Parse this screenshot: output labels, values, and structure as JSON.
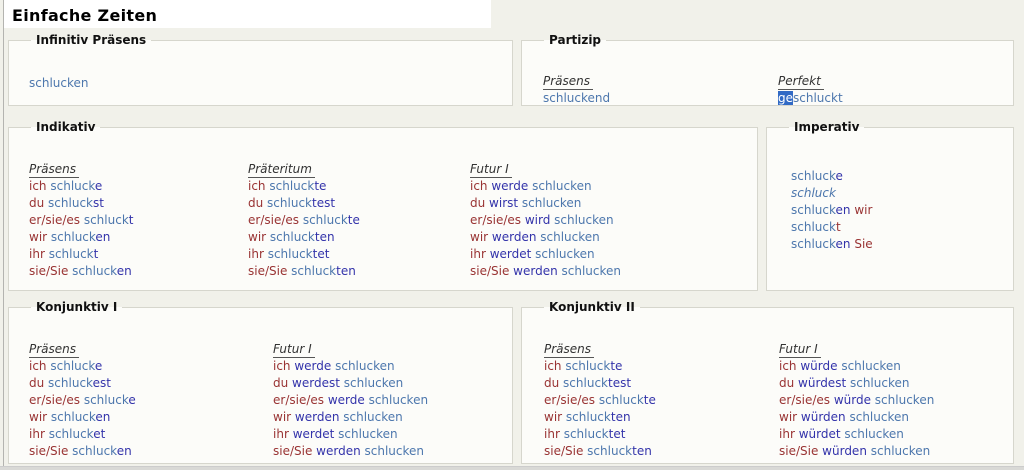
{
  "page": {
    "title": "Einfache Zeiten"
  },
  "colors": {
    "p": "#993333",
    "s": "#4d77ad",
    "e": "#3333aa",
    "sel_bg": "#316ac5",
    "sel_fg": "#ffffff"
  },
  "infinitiv": {
    "legend": "Infinitiv Präsens",
    "rows": [
      [
        [
          "schlucken",
          "s"
        ]
      ]
    ]
  },
  "partizip": {
    "legend": "Partizip",
    "praesens": {
      "header": "Präsens",
      "rows": [
        [
          [
            "schluckend",
            "s"
          ]
        ]
      ]
    },
    "perfekt": {
      "header": "Perfekt",
      "rows": [
        [
          [
            "ge",
            "sel"
          ],
          [
            "schluckt",
            "s"
          ]
        ]
      ]
    }
  },
  "indikativ": {
    "legend": "Indikativ",
    "praesens": {
      "header": "Präsens",
      "rows": [
        [
          [
            "ich ",
            "p"
          ],
          [
            "schluck",
            "s"
          ],
          [
            "e",
            "e"
          ]
        ],
        [
          [
            "du ",
            "p"
          ],
          [
            "schluck",
            "s"
          ],
          [
            "st",
            "e"
          ]
        ],
        [
          [
            "er/sie/es ",
            "p"
          ],
          [
            "schluck",
            "s"
          ],
          [
            "t",
            "e"
          ]
        ],
        [
          [
            "wir ",
            "p"
          ],
          [
            "schluck",
            "s"
          ],
          [
            "en",
            "e"
          ]
        ],
        [
          [
            "ihr ",
            "p"
          ],
          [
            "schluck",
            "s"
          ],
          [
            "t",
            "e"
          ]
        ],
        [
          [
            "sie/Sie ",
            "p"
          ],
          [
            "schluck",
            "s"
          ],
          [
            "en",
            "e"
          ]
        ]
      ]
    },
    "praeteritum": {
      "header": "Präteritum",
      "rows": [
        [
          [
            "ich ",
            "p"
          ],
          [
            "schluck",
            "s"
          ],
          [
            "te",
            "e"
          ]
        ],
        [
          [
            "du ",
            "p"
          ],
          [
            "schluck",
            "s"
          ],
          [
            "test",
            "e"
          ]
        ],
        [
          [
            "er/sie/es ",
            "p"
          ],
          [
            "schluck",
            "s"
          ],
          [
            "te",
            "e"
          ]
        ],
        [
          [
            "wir ",
            "p"
          ],
          [
            "schluck",
            "s"
          ],
          [
            "ten",
            "e"
          ]
        ],
        [
          [
            "ihr ",
            "p"
          ],
          [
            "schluck",
            "s"
          ],
          [
            "tet",
            "e"
          ]
        ],
        [
          [
            "sie/Sie ",
            "p"
          ],
          [
            "schluck",
            "s"
          ],
          [
            "ten",
            "e"
          ]
        ]
      ]
    },
    "futur1": {
      "header": "Futur I",
      "rows": [
        [
          [
            "ich ",
            "p"
          ],
          [
            "werde",
            "e"
          ],
          [
            " schlucken",
            "s"
          ]
        ],
        [
          [
            "du ",
            "p"
          ],
          [
            "wirst",
            "e"
          ],
          [
            " schlucken",
            "s"
          ]
        ],
        [
          [
            "er/sie/es ",
            "p"
          ],
          [
            "wird",
            "e"
          ],
          [
            " schlucken",
            "s"
          ]
        ],
        [
          [
            "wir ",
            "p"
          ],
          [
            "werden",
            "e"
          ],
          [
            " schlucken",
            "s"
          ]
        ],
        [
          [
            "ihr ",
            "p"
          ],
          [
            "werdet",
            "e"
          ],
          [
            " schlucken",
            "s"
          ]
        ],
        [
          [
            "sie/Sie ",
            "p"
          ],
          [
            "werden",
            "e"
          ],
          [
            " schlucken",
            "s"
          ]
        ]
      ]
    }
  },
  "imperativ": {
    "legend": "Imperativ",
    "rows": [
      [
        [
          "schluck",
          "s"
        ],
        [
          "e",
          "e"
        ]
      ],
      [
        [
          "schluck",
          "i"
        ]
      ],
      [
        [
          "schluck",
          "s"
        ],
        [
          "en",
          "e"
        ],
        [
          " wir",
          "p"
        ]
      ],
      [
        [
          "schluck",
          "s"
        ],
        [
          "t",
          "p"
        ]
      ],
      [
        [
          "schluck",
          "s"
        ],
        [
          "en",
          "e"
        ],
        [
          " Sie",
          "p"
        ]
      ]
    ]
  },
  "konjunktiv1": {
    "legend": "Konjunktiv I",
    "praesens": {
      "header": "Präsens",
      "rows": [
        [
          [
            "ich ",
            "p"
          ],
          [
            "schluck",
            "s"
          ],
          [
            "e",
            "e"
          ]
        ],
        [
          [
            "du ",
            "p"
          ],
          [
            "schluck",
            "s"
          ],
          [
            "est",
            "e"
          ]
        ],
        [
          [
            "er/sie/es ",
            "p"
          ],
          [
            "schluck",
            "s"
          ],
          [
            "e",
            "e"
          ]
        ],
        [
          [
            "wir ",
            "p"
          ],
          [
            "schluck",
            "s"
          ],
          [
            "en",
            "e"
          ]
        ],
        [
          [
            "ihr ",
            "p"
          ],
          [
            "schluck",
            "s"
          ],
          [
            "et",
            "e"
          ]
        ],
        [
          [
            "sie/Sie ",
            "p"
          ],
          [
            "schluck",
            "s"
          ],
          [
            "en",
            "e"
          ]
        ]
      ]
    },
    "futur1": {
      "header": "Futur I",
      "rows": [
        [
          [
            "ich ",
            "p"
          ],
          [
            "werde",
            "e"
          ],
          [
            " schlucken",
            "s"
          ]
        ],
        [
          [
            "du ",
            "p"
          ],
          [
            "werdest",
            "e"
          ],
          [
            " schlucken",
            "s"
          ]
        ],
        [
          [
            "er/sie/es ",
            "p"
          ],
          [
            "werde",
            "e"
          ],
          [
            " schlucken",
            "s"
          ]
        ],
        [
          [
            "wir ",
            "p"
          ],
          [
            "werden",
            "e"
          ],
          [
            " schlucken",
            "s"
          ]
        ],
        [
          [
            "ihr ",
            "p"
          ],
          [
            "werdet",
            "e"
          ],
          [
            " schlucken",
            "s"
          ]
        ],
        [
          [
            "sie/Sie ",
            "p"
          ],
          [
            "werden",
            "e"
          ],
          [
            " schlucken",
            "s"
          ]
        ]
      ]
    }
  },
  "konjunktiv2": {
    "legend": "Konjunktiv II",
    "praesens": {
      "header": "Präsens",
      "rows": [
        [
          [
            "ich ",
            "p"
          ],
          [
            "schluck",
            "s"
          ],
          [
            "te",
            "e"
          ]
        ],
        [
          [
            "du ",
            "p"
          ],
          [
            "schluck",
            "s"
          ],
          [
            "test",
            "e"
          ]
        ],
        [
          [
            "er/sie/es ",
            "p"
          ],
          [
            "schluck",
            "s"
          ],
          [
            "te",
            "e"
          ]
        ],
        [
          [
            "wir ",
            "p"
          ],
          [
            "schluck",
            "s"
          ],
          [
            "ten",
            "e"
          ]
        ],
        [
          [
            "ihr ",
            "p"
          ],
          [
            "schluck",
            "s"
          ],
          [
            "tet",
            "e"
          ]
        ],
        [
          [
            "sie/Sie ",
            "p"
          ],
          [
            "schluck",
            "s"
          ],
          [
            "ten",
            "e"
          ]
        ]
      ]
    },
    "futur1": {
      "header": "Futur I",
      "rows": [
        [
          [
            "ich ",
            "p"
          ],
          [
            "würde",
            "e"
          ],
          [
            " schlucken",
            "s"
          ]
        ],
        [
          [
            "du ",
            "p"
          ],
          [
            "würdest",
            "e"
          ],
          [
            " schlucken",
            "s"
          ]
        ],
        [
          [
            "er/sie/es ",
            "p"
          ],
          [
            "würde",
            "e"
          ],
          [
            " schlucken",
            "s"
          ]
        ],
        [
          [
            "wir ",
            "p"
          ],
          [
            "würden",
            "e"
          ],
          [
            " schlucken",
            "s"
          ]
        ],
        [
          [
            "ihr ",
            "p"
          ],
          [
            "würdet",
            "e"
          ],
          [
            " schlucken",
            "s"
          ]
        ],
        [
          [
            "sie/Sie ",
            "p"
          ],
          [
            "würden",
            "e"
          ],
          [
            " schlucken",
            "s"
          ]
        ]
      ]
    }
  }
}
